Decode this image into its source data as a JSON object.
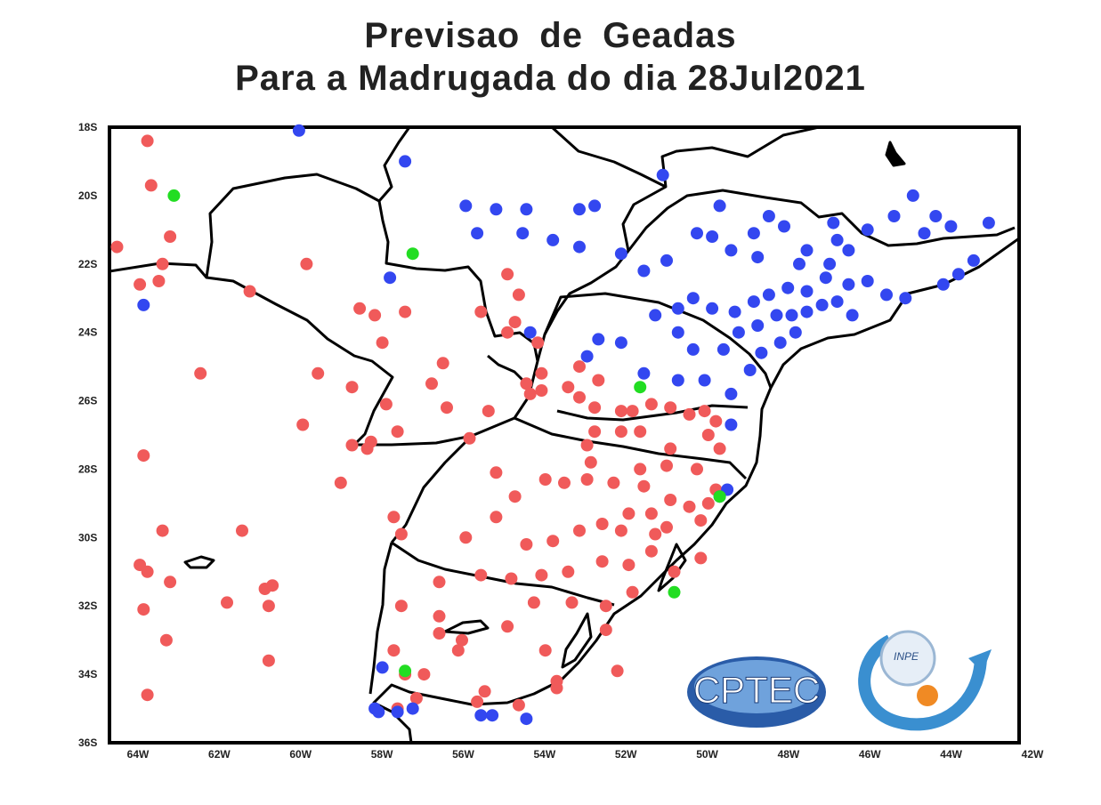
{
  "title_line1": "Previsao  de  Geadas",
  "title_line2": "Para a Madrugada do dia 28Jul2021",
  "y_ticks": [
    "18S",
    "20S",
    "22S",
    "24S",
    "26S",
    "28S",
    "30S",
    "32S",
    "34S",
    "36S"
  ],
  "x_ticks": [
    "64W",
    "62W",
    "60W",
    "58W",
    "56W",
    "54W",
    "52W",
    "50W",
    "48W",
    "46W",
    "44W",
    "42W"
  ],
  "logos": {
    "cptec": "CPTEC",
    "inpe": "INPE"
  },
  "colors": {
    "frost": "#f05a5a",
    "no_frost": "#3347f0",
    "other": "#22dd22",
    "border": "#000000"
  },
  "chart_data": {
    "type": "scatter",
    "xlim": [
      -65,
      -41
    ],
    "ylim": [
      -36,
      -18
    ],
    "series": [
      {
        "color": "#f05a5a",
        "points": [
          [
            -64.0,
            -18.4
          ],
          [
            -63.9,
            -19.7
          ],
          [
            -64.8,
            -21.5
          ],
          [
            -64.2,
            -22.6
          ],
          [
            -63.4,
            -21.2
          ],
          [
            -63.6,
            -22.0
          ],
          [
            -63.7,
            -22.5
          ],
          [
            -61.3,
            -22.8
          ],
          [
            -59.8,
            -22.0
          ],
          [
            -58.4,
            -23.3
          ],
          [
            -59.5,
            -25.2
          ],
          [
            -58.6,
            -25.6
          ],
          [
            -58.0,
            -23.5
          ],
          [
            -57.8,
            -24.3
          ],
          [
            -57.2,
            -23.4
          ],
          [
            -56.2,
            -24.9
          ],
          [
            -56.5,
            -25.5
          ],
          [
            -56.1,
            -26.2
          ],
          [
            -57.7,
            -26.1
          ],
          [
            -57.4,
            -26.9
          ],
          [
            -58.1,
            -27.2
          ],
          [
            -58.2,
            -27.4
          ],
          [
            -58.6,
            -27.3
          ],
          [
            -59.9,
            -26.7
          ],
          [
            -64.1,
            -27.6
          ],
          [
            -62.6,
            -25.2
          ],
          [
            -64.0,
            -31.0
          ],
          [
            -64.2,
            -30.8
          ],
          [
            -63.6,
            -29.8
          ],
          [
            -61.5,
            -29.8
          ],
          [
            -60.7,
            -31.4
          ],
          [
            -60.9,
            -31.5
          ],
          [
            -61.9,
            -31.9
          ],
          [
            -60.8,
            -32.0
          ],
          [
            -63.4,
            -31.3
          ],
          [
            -64.1,
            -32.1
          ],
          [
            -63.5,
            -33.0
          ],
          [
            -64.0,
            -34.6
          ],
          [
            -60.8,
            -33.6
          ],
          [
            -58.9,
            -28.4
          ],
          [
            -54.8,
            -28.1
          ],
          [
            -55.5,
            -27.1
          ],
          [
            -55.0,
            -26.3
          ],
          [
            -55.2,
            -23.4
          ],
          [
            -54.5,
            -22.3
          ],
          [
            -54.2,
            -22.9
          ],
          [
            -54.3,
            -23.7
          ],
          [
            -54.5,
            -24.0
          ],
          [
            -53.7,
            -24.3
          ],
          [
            -53.6,
            -25.2
          ],
          [
            -54.0,
            -25.5
          ],
          [
            -53.9,
            -25.8
          ],
          [
            -53.6,
            -25.7
          ],
          [
            -52.9,
            -25.6
          ],
          [
            -52.6,
            -25.9
          ],
          [
            -52.1,
            -25.4
          ],
          [
            -52.6,
            -25.0
          ],
          [
            -52.2,
            -26.2
          ],
          [
            -51.5,
            -26.3
          ],
          [
            -51.2,
            -26.3
          ],
          [
            -50.7,
            -26.1
          ],
          [
            -50.2,
            -26.2
          ],
          [
            -49.7,
            -26.4
          ],
          [
            -49.3,
            -26.3
          ],
          [
            -49.0,
            -26.6
          ],
          [
            -49.2,
            -27.0
          ],
          [
            -50.2,
            -27.4
          ],
          [
            -51.0,
            -26.9
          ],
          [
            -51.5,
            -26.9
          ],
          [
            -52.2,
            -26.9
          ],
          [
            -52.4,
            -27.3
          ],
          [
            -52.3,
            -27.8
          ],
          [
            -52.4,
            -28.3
          ],
          [
            -53.0,
            -28.4
          ],
          [
            -53.5,
            -28.3
          ],
          [
            -54.3,
            -28.8
          ],
          [
            -54.8,
            -29.4
          ],
          [
            -55.6,
            -30.0
          ],
          [
            -54.0,
            -30.2
          ],
          [
            -53.3,
            -30.1
          ],
          [
            -52.6,
            -29.8
          ],
          [
            -52.0,
            -29.6
          ],
          [
            -51.5,
            -29.8
          ],
          [
            -51.3,
            -29.3
          ],
          [
            -50.7,
            -29.3
          ],
          [
            -50.3,
            -29.7
          ],
          [
            -49.7,
            -29.1
          ],
          [
            -49.4,
            -29.5
          ],
          [
            -49.2,
            -29.0
          ],
          [
            -50.2,
            -28.9
          ],
          [
            -50.9,
            -28.5
          ],
          [
            -51.7,
            -28.4
          ],
          [
            -51.0,
            -28.0
          ],
          [
            -50.3,
            -27.9
          ],
          [
            -49.5,
            -28.0
          ],
          [
            -49.0,
            -28.6
          ],
          [
            -50.7,
            -30.4
          ],
          [
            -51.3,
            -30.8
          ],
          [
            -52.0,
            -30.7
          ],
          [
            -52.9,
            -31.0
          ],
          [
            -53.6,
            -31.1
          ],
          [
            -54.4,
            -31.2
          ],
          [
            -55.2,
            -31.1
          ],
          [
            -56.3,
            -31.3
          ],
          [
            -56.3,
            -32.3
          ],
          [
            -55.8,
            -33.3
          ],
          [
            -54.5,
            -32.6
          ],
          [
            -53.5,
            -33.3
          ],
          [
            -53.2,
            -34.2
          ],
          [
            -54.2,
            -34.9
          ],
          [
            -55.1,
            -34.5
          ],
          [
            -55.7,
            -33.0
          ],
          [
            -56.3,
            -32.8
          ],
          [
            -51.9,
            -32.0
          ],
          [
            -51.2,
            -31.6
          ],
          [
            -50.1,
            -31.0
          ],
          [
            -51.6,
            -33.9
          ],
          [
            -57.3,
            -29.9
          ],
          [
            -57.5,
            -29.4
          ],
          [
            -57.3,
            -32.0
          ],
          [
            -57.2,
            -34.0
          ],
          [
            -56.7,
            -34.0
          ],
          [
            -57.5,
            -33.3
          ],
          [
            -56.9,
            -34.7
          ],
          [
            -57.4,
            -35.0
          ],
          [
            -55.3,
            -34.8
          ],
          [
            -53.2,
            -34.4
          ],
          [
            -51.9,
            -32.7
          ],
          [
            -52.8,
            -31.9
          ],
          [
            -53.8,
            -31.9
          ],
          [
            -48.9,
            -27.4
          ],
          [
            -49.4,
            -30.6
          ],
          [
            -50.6,
            -29.9
          ]
        ]
      },
      {
        "color": "#3347f0",
        "points": [
          [
            -60.0,
            -18.1
          ],
          [
            -57.2,
            -19.0
          ],
          [
            -55.6,
            -20.3
          ],
          [
            -54.8,
            -20.4
          ],
          [
            -54.0,
            -20.4
          ],
          [
            -52.6,
            -20.4
          ],
          [
            -52.2,
            -20.3
          ],
          [
            -50.4,
            -19.4
          ],
          [
            -55.3,
            -21.1
          ],
          [
            -54.1,
            -21.1
          ],
          [
            -53.3,
            -21.3
          ],
          [
            -52.6,
            -21.5
          ],
          [
            -51.5,
            -21.7
          ],
          [
            -50.9,
            -22.2
          ],
          [
            -50.3,
            -21.9
          ],
          [
            -49.5,
            -21.1
          ],
          [
            -49.1,
            -21.2
          ],
          [
            -48.6,
            -21.6
          ],
          [
            -48.0,
            -21.1
          ],
          [
            -47.6,
            -20.6
          ],
          [
            -48.9,
            -20.3
          ],
          [
            -47.2,
            -20.9
          ],
          [
            -46.6,
            -21.6
          ],
          [
            -46.0,
            -22.0
          ],
          [
            -45.5,
            -21.6
          ],
          [
            -45.0,
            -21.0
          ],
          [
            -44.3,
            -20.6
          ],
          [
            -43.8,
            -20.0
          ],
          [
            -43.5,
            -21.1
          ],
          [
            -42.8,
            -20.9
          ],
          [
            -41.8,
            -20.8
          ],
          [
            -42.2,
            -21.9
          ],
          [
            -42.6,
            -22.3
          ],
          [
            -43.0,
            -22.6
          ],
          [
            -44.0,
            -23.0
          ],
          [
            -44.5,
            -22.9
          ],
          [
            -45.0,
            -22.5
          ],
          [
            -45.5,
            -22.6
          ],
          [
            -46.1,
            -22.4
          ],
          [
            -46.6,
            -22.8
          ],
          [
            -47.1,
            -22.7
          ],
          [
            -47.6,
            -22.9
          ],
          [
            -48.0,
            -23.1
          ],
          [
            -48.5,
            -23.4
          ],
          [
            -49.1,
            -23.3
          ],
          [
            -49.6,
            -23.0
          ],
          [
            -50.0,
            -23.3
          ],
          [
            -48.4,
            -24.0
          ],
          [
            -47.9,
            -23.8
          ],
          [
            -47.4,
            -23.5
          ],
          [
            -47.0,
            -23.5
          ],
          [
            -46.6,
            -23.4
          ],
          [
            -46.2,
            -23.2
          ],
          [
            -45.8,
            -23.1
          ],
          [
            -45.4,
            -23.5
          ],
          [
            -46.9,
            -24.0
          ],
          [
            -47.3,
            -24.3
          ],
          [
            -47.8,
            -24.6
          ],
          [
            -48.1,
            -25.1
          ],
          [
            -48.6,
            -25.8
          ],
          [
            -48.8,
            -24.5
          ],
          [
            -49.6,
            -24.5
          ],
          [
            -50.0,
            -24.0
          ],
          [
            -50.6,
            -23.5
          ],
          [
            -51.5,
            -24.3
          ],
          [
            -52.1,
            -24.2
          ],
          [
            -52.4,
            -24.7
          ],
          [
            -53.9,
            -24.0
          ],
          [
            -50.9,
            -25.2
          ],
          [
            -50.0,
            -25.4
          ],
          [
            -49.3,
            -25.4
          ],
          [
            -48.6,
            -26.7
          ],
          [
            -48.7,
            -28.6
          ],
          [
            -48.9,
            -28.8
          ],
          [
            -58.0,
            -35.0
          ],
          [
            -57.9,
            -35.1
          ],
          [
            -57.4,
            -35.1
          ],
          [
            -57.0,
            -35.0
          ],
          [
            -55.2,
            -35.2
          ],
          [
            -54.9,
            -35.2
          ],
          [
            -54.0,
            -35.3
          ],
          [
            -57.8,
            -33.8
          ],
          [
            -57.6,
            -22.4
          ],
          [
            -64.1,
            -23.2
          ],
          [
            -45.9,
            -20.8
          ],
          [
            -45.8,
            -21.3
          ],
          [
            -46.8,
            -22.0
          ],
          [
            -47.9,
            -21.8
          ],
          [
            -43.2,
            -20.6
          ]
        ]
      },
      {
        "color": "#22dd22",
        "points": [
          [
            -63.3,
            -20.0
          ],
          [
            -57.0,
            -21.7
          ],
          [
            -51.0,
            -25.6
          ],
          [
            -48.9,
            -28.8
          ],
          [
            -50.1,
            -31.6
          ],
          [
            -57.2,
            -33.9
          ]
        ]
      }
    ]
  }
}
